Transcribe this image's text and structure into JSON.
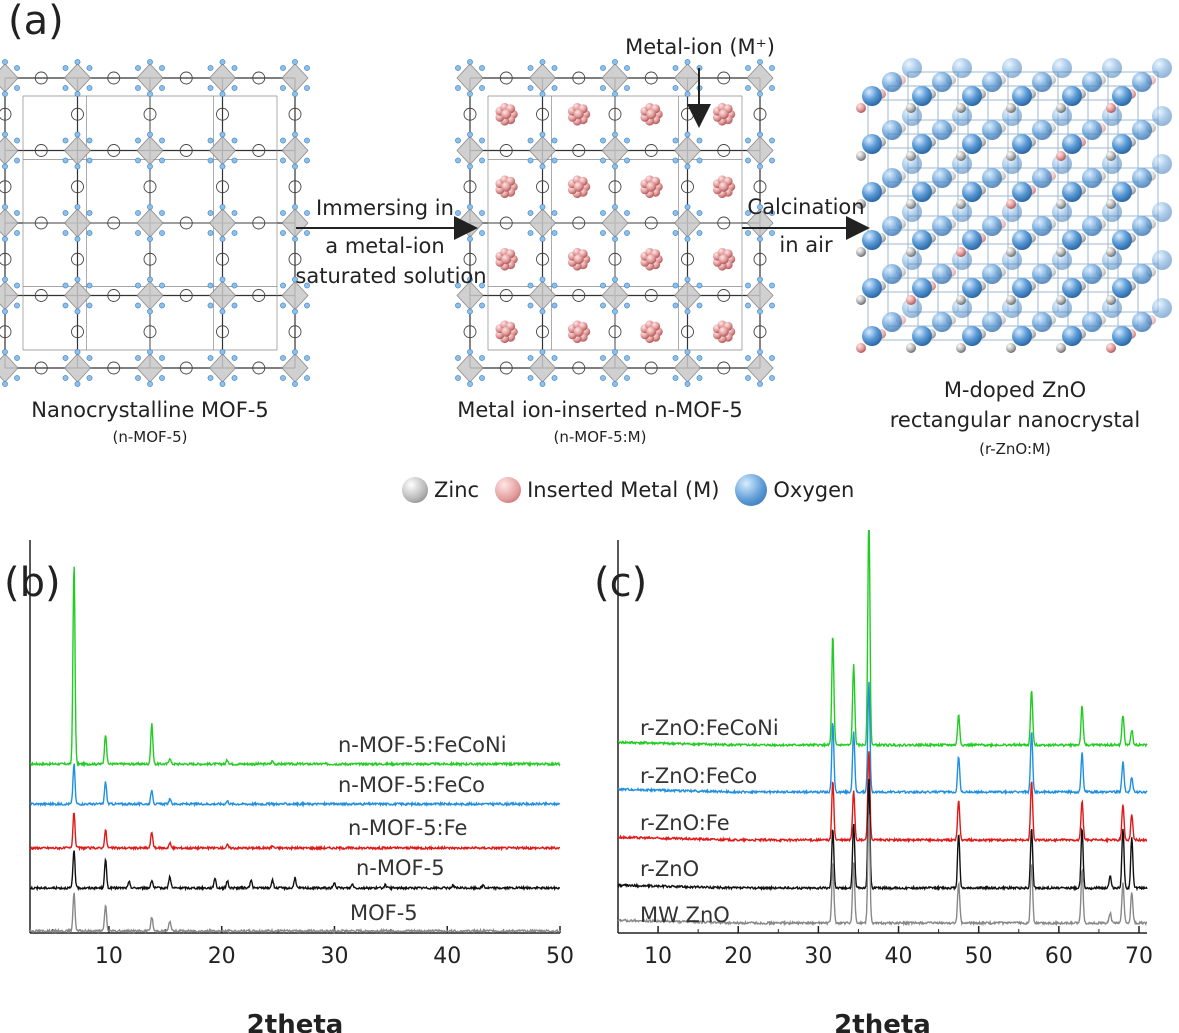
{
  "panel_a": {
    "letter": "(a)",
    "structures": [
      {
        "caption": "Nanocrystalline MOF-5",
        "sub": "(n-MOF-5)"
      },
      {
        "caption": "Metal ion-inserted n-MOF-5",
        "sub": "(n-MOF-5:M)"
      },
      {
        "caption_line1": "M-doped ZnO",
        "caption_line2": "rectangular nanocrystal",
        "sub": "(r-ZnO:M)"
      }
    ],
    "arrow1": {
      "line1": "Immersing in",
      "line2": "a metal-ion",
      "line3": "saturated solution"
    },
    "arrow2": {
      "line1": "Calcination",
      "line2": "in air"
    },
    "metal_ion_label": "Metal-ion (M⁺)",
    "legend": [
      {
        "label": "Zinc",
        "color": "#b9b9b9"
      },
      {
        "label": "Inserted Metal (M)",
        "color": "#e39b9b"
      },
      {
        "label": "Oxygen",
        "color": "#5c9bd6"
      }
    ]
  },
  "chart_data": [
    {
      "type": "line",
      "panel": "(b)",
      "xlabel": "2theta",
      "xlim": [
        3,
        50
      ],
      "xticks": [
        10,
        20,
        30,
        40,
        50
      ],
      "series": [
        {
          "name": "n-MOF-5:FeCoNi",
          "color": "#22cc22",
          "peaks": [
            [
              6.9,
              200
            ],
            [
              9.7,
              30
            ],
            [
              13.8,
              40
            ],
            [
              15.4,
              6
            ],
            [
              20.5,
              4
            ],
            [
              24.5,
              3
            ]
          ]
        },
        {
          "name": "n-MOF-5:FeCo",
          "color": "#1f8fe0",
          "peaks": [
            [
              6.9,
              40
            ],
            [
              9.7,
              22
            ],
            [
              13.8,
              14
            ],
            [
              15.4,
              5
            ],
            [
              20.5,
              3
            ]
          ]
        },
        {
          "name": "n-MOF-5:Fe",
          "color": "#e01818",
          "peaks": [
            [
              6.9,
              36
            ],
            [
              9.7,
              18
            ],
            [
              13.8,
              16
            ],
            [
              15.4,
              5
            ],
            [
              20.5,
              3
            ],
            [
              24.5,
              2
            ]
          ]
        },
        {
          "name": "n-MOF-5",
          "color": "#111111",
          "peaks": [
            [
              6.9,
              38
            ],
            [
              9.7,
              28
            ],
            [
              11.8,
              6
            ],
            [
              13.8,
              8
            ],
            [
              15.4,
              12
            ],
            [
              19.4,
              10
            ],
            [
              20.5,
              7
            ],
            [
              22.6,
              8
            ],
            [
              24.5,
              8
            ],
            [
              26.5,
              10
            ],
            [
              30.0,
              5
            ],
            [
              31.6,
              4
            ],
            [
              34.5,
              3
            ],
            [
              40.5,
              3
            ],
            [
              43.2,
              3
            ]
          ]
        },
        {
          "name": "MOF-5",
          "color": "#888888",
          "peaks": [
            [
              6.9,
              38
            ],
            [
              9.7,
              26
            ],
            [
              13.8,
              14
            ],
            [
              15.4,
              10
            ]
          ]
        }
      ]
    },
    {
      "type": "line",
      "panel": "(c)",
      "xlabel": "2theta",
      "xlim": [
        5,
        71
      ],
      "xticks": [
        10,
        20,
        30,
        40,
        50,
        60,
        70
      ],
      "series": [
        {
          "name": "r-ZnO:FeCoNi",
          "color": "#22cc22",
          "peaks": [
            [
              31.8,
              110
            ],
            [
              34.4,
              80
            ],
            [
              36.3,
              230
            ],
            [
              47.5,
              30
            ],
            [
              56.6,
              55
            ],
            [
              62.9,
              40
            ],
            [
              68.0,
              30
            ],
            [
              69.1,
              15
            ]
          ]
        },
        {
          "name": "r-ZnO:FeCo",
          "color": "#1f8fe0",
          "peaks": [
            [
              31.8,
              70
            ],
            [
              34.4,
              60
            ],
            [
              36.3,
              110
            ],
            [
              47.5,
              35
            ],
            [
              56.6,
              60
            ],
            [
              62.9,
              40
            ],
            [
              68.0,
              30
            ],
            [
              69.1,
              15
            ]
          ]
        },
        {
          "name": "r-ZnO:Fe",
          "color": "#e01818",
          "peaks": [
            [
              31.8,
              60
            ],
            [
              34.4,
              50
            ],
            [
              36.3,
              90
            ],
            [
              47.5,
              40
            ],
            [
              56.6,
              60
            ],
            [
              62.9,
              40
            ],
            [
              68.0,
              35
            ],
            [
              69.1,
              25
            ]
          ]
        },
        {
          "name": "r-ZnO",
          "color": "#111111",
          "peaks": [
            [
              31.8,
              60
            ],
            [
              34.4,
              65
            ],
            [
              36.3,
              110
            ],
            [
              47.5,
              55
            ],
            [
              56.6,
              60
            ],
            [
              62.9,
              60
            ],
            [
              66.4,
              12
            ],
            [
              68.0,
              60
            ],
            [
              69.1,
              50
            ]
          ]
        },
        {
          "name": "MW ZnO",
          "color": "#888888",
          "peaks": [
            [
              31.8,
              60
            ],
            [
              34.4,
              60
            ],
            [
              36.3,
              110
            ],
            [
              47.5,
              40
            ],
            [
              56.6,
              60
            ],
            [
              62.9,
              55
            ],
            [
              66.4,
              10
            ],
            [
              68.0,
              40
            ],
            [
              69.1,
              30
            ]
          ]
        }
      ]
    }
  ]
}
